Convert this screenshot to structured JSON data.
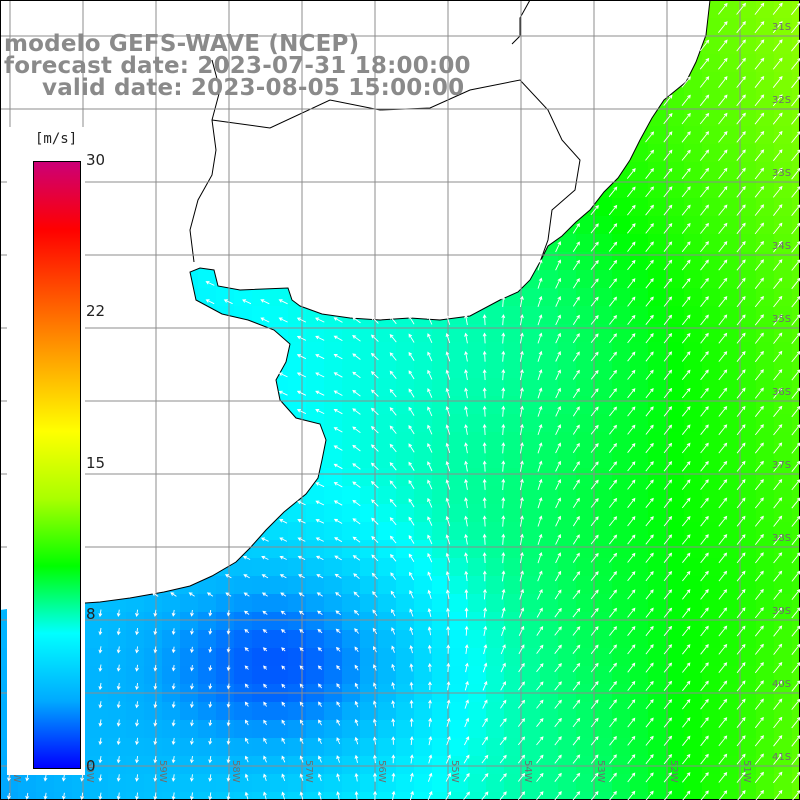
{
  "title": {
    "line1": "modelo GEFS-WAVE (NCEP)",
    "line2": "forecast date: 2023-07-31 18:00:00",
    "line3": "valid date: 2023-08-05 15:00:00"
  },
  "colorbar": {
    "unit": "[m/s]",
    "ticks": [
      "30",
      "22",
      "15",
      "8",
      "0"
    ],
    "tick_values": [
      30,
      22,
      15,
      8,
      0
    ],
    "range": [
      0,
      30
    ],
    "colors": [
      "#0000ff",
      "#00aaff",
      "#00ffff",
      "#00ff00",
      "#aaff00",
      "#ffff00",
      "#ffaa00",
      "#ff5500",
      "#ff0000",
      "#cc0077"
    ]
  },
  "map": {
    "field": "wind speed with direction arrows",
    "land_color": "#ffffff",
    "grid_color": "#8c8c8c",
    "arrow_color": "#ffffff",
    "lat_labels": [
      "31S",
      "32S",
      "33S",
      "34S",
      "35S",
      "36S",
      "37S",
      "38S",
      "39S",
      "40S",
      "41S"
    ],
    "lon_labels": [
      "61W",
      "60W",
      "59W",
      "58W",
      "57W",
      "56W",
      "55W",
      "54W",
      "53W",
      "52W",
      "51W"
    ]
  }
}
